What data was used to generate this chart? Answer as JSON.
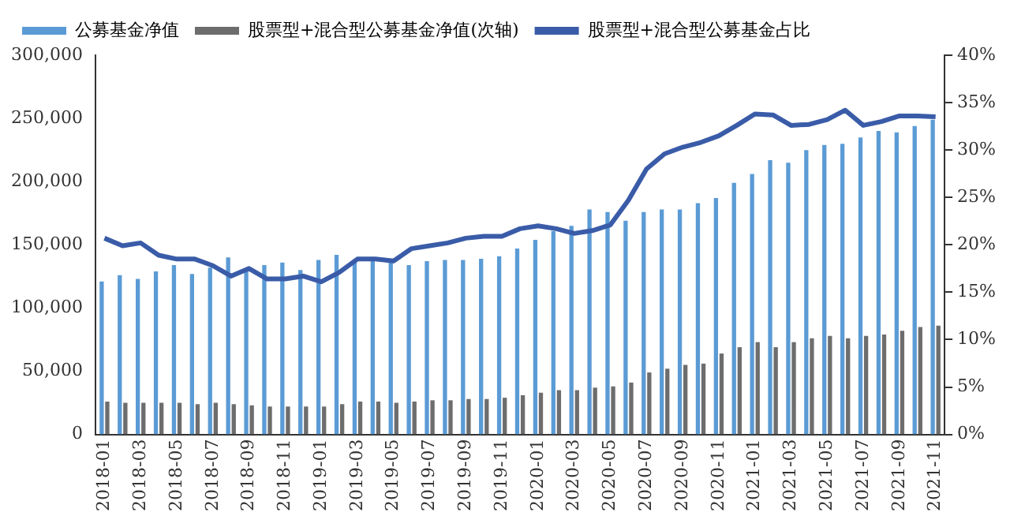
{
  "chart_data": {
    "type": "bar",
    "categories": [
      "2018-01",
      null,
      "2018-03",
      null,
      "2018-05",
      null,
      "2018-07",
      null,
      "2018-09",
      null,
      "2018-11",
      null,
      "2019-01",
      null,
      "2019-03",
      null,
      "2019-05",
      null,
      "2019-07",
      null,
      "2019-09",
      null,
      "2019-11",
      null,
      "2020-01",
      null,
      "2020-03",
      null,
      "2020-05",
      null,
      "2020-07",
      null,
      "2020-09",
      null,
      "2020-11",
      null,
      "2021-01",
      null,
      "2021-03",
      null,
      "2021-05",
      null,
      "2021-07",
      null,
      "2021-09",
      null,
      "2021-11"
    ],
    "series": [
      {
        "name": "公募基金净值",
        "color": "#5b9bd5",
        "values": [
          121000,
          126000,
          123000,
          129000,
          134000,
          127000,
          132000,
          140000,
          131000,
          134000,
          136000,
          130000,
          138000,
          142000,
          137000,
          138000,
          137000,
          134000,
          137000,
          138000,
          138000,
          139000,
          141000,
          147000,
          154000,
          161000,
          165000,
          178000,
          176000,
          169000,
          176000,
          178000,
          178000,
          183000,
          187000,
          199000,
          206000,
          217000,
          215000,
          225000,
          229000,
          230000,
          235000,
          240000,
          239000,
          244000,
          249000
        ]
      },
      {
        "name": "股票型+混合型公募基金净值(次轴)",
        "color": "#6d6d6d",
        "values": [
          26000,
          25000,
          25000,
          25000,
          25000,
          24000,
          25000,
          24000,
          23000,
          22000,
          22000,
          22000,
          22000,
          24000,
          26000,
          26000,
          25000,
          26000,
          27000,
          27000,
          28000,
          28000,
          29000,
          31000,
          33000,
          35000,
          35000,
          37000,
          38000,
          41000,
          49000,
          52000,
          55000,
          56000,
          64000,
          69000,
          73000,
          69000,
          73000,
          76000,
          78000,
          76000,
          78000,
          79000,
          82000,
          85000,
          86000
        ]
      },
      {
        "name": "股票型+混合型公募基金占比",
        "type": "line",
        "axis": "y2",
        "color": "#3a5ca8",
        "values": [
          20.7,
          19.9,
          20.2,
          18.9,
          18.5,
          18.5,
          17.8,
          16.7,
          17.5,
          16.4,
          16.4,
          16.7,
          16.1,
          17.1,
          18.5,
          18.5,
          18.3,
          19.6,
          19.9,
          20.2,
          20.7,
          20.9,
          20.9,
          21.7,
          22.0,
          21.7,
          21.2,
          21.5,
          22.1,
          24.7,
          28.0,
          29.6,
          30.3,
          30.8,
          31.5,
          32.6,
          33.8,
          33.7,
          32.6,
          32.7,
          33.2,
          34.2,
          32.6,
          33.0,
          33.6,
          33.6,
          33.5
        ]
      }
    ],
    "ylim": [
      0,
      300000
    ],
    "yticks": [
      {
        "value": 0,
        "label": "0"
      },
      {
        "value": 50000,
        "label": "50,000"
      },
      {
        "value": 100000,
        "label": "100,000"
      },
      {
        "value": 150000,
        "label": "150,000"
      },
      {
        "value": 200000,
        "label": "200,000"
      },
      {
        "value": 250000,
        "label": "250,000"
      },
      {
        "value": 300000,
        "label": "300,000"
      }
    ],
    "y2lim": [
      0,
      40
    ],
    "y2ticks": [
      {
        "value": 0,
        "label": "0%"
      },
      {
        "value": 5,
        "label": "5%"
      },
      {
        "value": 10,
        "label": "10%"
      },
      {
        "value": 15,
        "label": "15%"
      },
      {
        "value": 20,
        "label": "20%"
      },
      {
        "value": 25,
        "label": "25%"
      },
      {
        "value": 30,
        "label": "30%"
      },
      {
        "value": 35,
        "label": "35%"
      },
      {
        "value": 40,
        "label": "40%"
      }
    ],
    "grid": false,
    "legend": "top",
    "marker": "none"
  }
}
